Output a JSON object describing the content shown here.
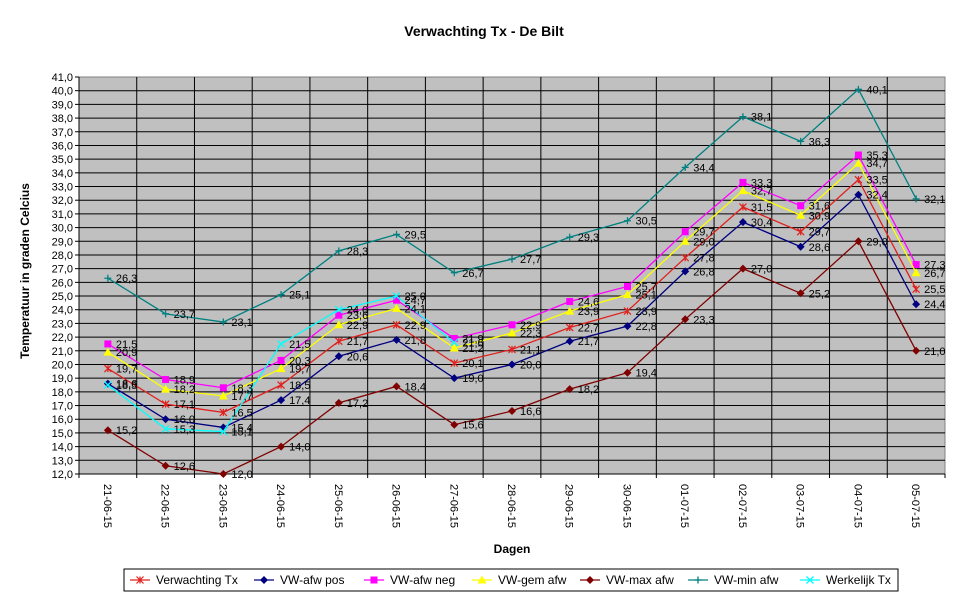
{
  "chart_data": {
    "type": "line",
    "title": "Verwachting Tx - De Bilt",
    "xlabel": "Dagen",
    "ylabel": "Temperatuur in graden Celcius",
    "ylim": [
      12,
      41
    ],
    "ytick_step": 1,
    "grid": true,
    "legend_position": "bottom",
    "plot_background": "#c0c0c0",
    "categories": [
      "21-06-15",
      "22-06-15",
      "23-06-15",
      "24-06-15",
      "25-06-15",
      "26-06-15",
      "27-06-15",
      "28-06-15",
      "29-06-15",
      "30-06-15",
      "01-07-15",
      "02-07-15",
      "03-07-15",
      "04-07-15",
      "05-07-15"
    ],
    "series": [
      {
        "name": "Verwachting Tx",
        "color": "#e0201c",
        "marker": "star",
        "values": [
          19.7,
          17.1,
          16.5,
          18.5,
          21.7,
          22.9,
          20.1,
          21.1,
          22.7,
          23.9,
          27.8,
          31.5,
          29.7,
          33.5,
          25.5
        ],
        "labels": [
          "19,7",
          "17,1",
          "16,5",
          "18,5",
          "21,7",
          "22,9",
          "20,1",
          "21,1",
          "22,7",
          "23,9",
          "27,8",
          "31,5",
          "29,7",
          "33,5",
          "25,5"
        ]
      },
      {
        "name": "VW-afw pos",
        "color": "#000080",
        "marker": "diamond",
        "values": [
          18.6,
          16.0,
          15.4,
          17.4,
          20.6,
          21.8,
          19.0,
          20.0,
          21.7,
          22.8,
          26.8,
          30.4,
          28.6,
          32.4,
          24.4
        ],
        "labels": [
          "18,6",
          "16,0",
          "15,4",
          "17,4",
          "20,6",
          "21,8",
          "19,0",
          "20,0",
          "21,7",
          "22,8",
          "26,8",
          "30,4",
          "28,6",
          "32,4",
          "24,4"
        ]
      },
      {
        "name": "VW-afw neg",
        "color": "#ff00ff",
        "marker": "square",
        "values": [
          21.5,
          18.9,
          18.3,
          20.3,
          23.6,
          24.7,
          21.9,
          22.9,
          24.6,
          25.7,
          29.7,
          33.3,
          31.6,
          35.3,
          27.3
        ],
        "labels": [
          "21,5",
          "18,9",
          "18,3",
          "20,3",
          "23,6",
          "24,7",
          "21,9",
          "22,9",
          "24,6",
          "25,7",
          "29,7",
          "33,3",
          "31,6",
          "35,3",
          "27,3"
        ]
      },
      {
        "name": "VW-gem afw",
        "color": "#ffff00",
        "marker": "triangle",
        "values": [
          20.9,
          18.2,
          17.7,
          19.7,
          22.9,
          24.1,
          21.2,
          22.3,
          23.9,
          25.1,
          29.0,
          32.7,
          30.9,
          34.7,
          26.7
        ],
        "labels": [
          "20,9",
          "18,2",
          "17,7",
          "19,7",
          "22,9",
          "24,1",
          "21,2",
          "22,3",
          "23,9",
          "25,1",
          "29,0",
          "32,7",
          "30,9",
          "34,7",
          "26,7"
        ]
      },
      {
        "name": "VW-max afw",
        "color": "#800000",
        "marker": "diamond",
        "values": [
          15.2,
          12.6,
          12.0,
          14.0,
          17.2,
          18.4,
          15.6,
          16.6,
          18.2,
          19.4,
          23.3,
          27.0,
          25.2,
          29.0,
          21.0
        ],
        "labels": [
          "15,2",
          "12,6",
          "12,0",
          "14,0",
          "17,2",
          "18,4",
          "15,6",
          "16,6",
          "18,2",
          "19,4",
          "23,3",
          "27,0",
          "25,2",
          "29,0",
          "21,0"
        ]
      },
      {
        "name": "VW-min afw",
        "color": "#008080",
        "marker": "plus",
        "values": [
          26.3,
          23.7,
          23.1,
          25.1,
          28.3,
          29.5,
          26.7,
          27.7,
          29.3,
          30.5,
          34.4,
          38.1,
          36.3,
          40.1,
          32.1
        ],
        "labels": [
          "26,3",
          "23,7",
          "23,1",
          "25,1",
          "28,3",
          "29,5",
          "26,7",
          "27,7",
          "29,3",
          "30,5",
          "34,4",
          "38,1",
          "36,3",
          "40,1",
          "32,1"
        ]
      },
      {
        "name": "Werkelijk Tx",
        "color": "#00ffff",
        "marker": "x",
        "values": [
          18.5,
          15.3,
          15.1,
          21.5,
          24.0,
          25.0,
          21.6,
          null,
          null,
          null,
          null,
          null,
          null,
          null,
          null
        ],
        "labels": [
          "18,5",
          "15,3",
          "15,1",
          "21,5",
          "24,0",
          "25,0",
          "21,6",
          "",
          "",
          "",
          "",
          "",
          "",
          "",
          ""
        ]
      }
    ]
  }
}
